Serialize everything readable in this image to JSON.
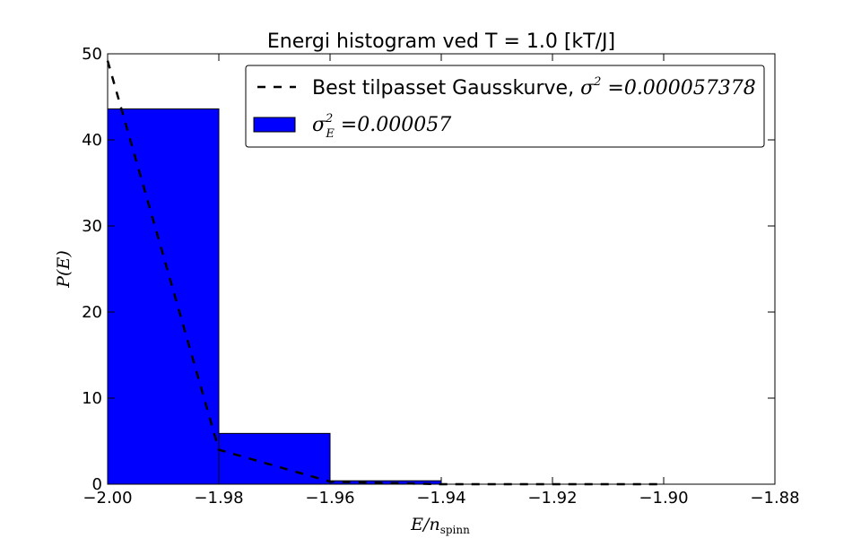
{
  "chart_data": {
    "type": "bar",
    "title": "Energi histogram ved T = 1.0 [kT/J]",
    "xlabel": {
      "main": "E/n",
      "sub": "spinn"
    },
    "ylabel": "P(E)",
    "xlim": [
      -2.0,
      -1.88
    ],
    "ylim": [
      0,
      50
    ],
    "xticks": [
      "−2.00",
      "−1.98",
      "−1.96",
      "−1.94",
      "−1.92",
      "−1.90",
      "−1.88"
    ],
    "xtick_values": [
      -2.0,
      -1.98,
      -1.96,
      -1.94,
      -1.92,
      -1.9,
      -1.88
    ],
    "yticks": [
      "0",
      "10",
      "20",
      "30",
      "40",
      "50"
    ],
    "ytick_values": [
      0,
      10,
      20,
      30,
      40,
      50
    ],
    "grid": false,
    "legend_position": "top-right",
    "bars": [
      {
        "x0": -2.0,
        "x1": -1.98,
        "value": 43.6
      },
      {
        "x0": -1.98,
        "x1": -1.96,
        "value": 5.9
      },
      {
        "x0": -1.96,
        "x1": -1.94,
        "value": 0.4
      },
      {
        "x0": -1.94,
        "x1": -1.92,
        "value": 0.0
      },
      {
        "x0": -1.92,
        "x1": -1.9,
        "value": 0.0
      }
    ],
    "bar_color": "#0000ff",
    "series": [
      {
        "kind": "fit",
        "style": "dashed",
        "color": "#000000",
        "x": [
          -2.0,
          -1.98,
          -1.96,
          -1.94,
          -1.92,
          -1.9
        ],
        "y": [
          49.2,
          4.0,
          0.3,
          0.0,
          0.0,
          0.0
        ]
      }
    ],
    "legend": {
      "fit": {
        "text": "Best tilpasset Gausskurve, ",
        "math": "σ",
        "sup": "2",
        "value": " =0.000057378"
      },
      "hist": {
        "math": "σ",
        "sub": "E",
        "sup": "2",
        "value": " =0.000057"
      }
    }
  }
}
